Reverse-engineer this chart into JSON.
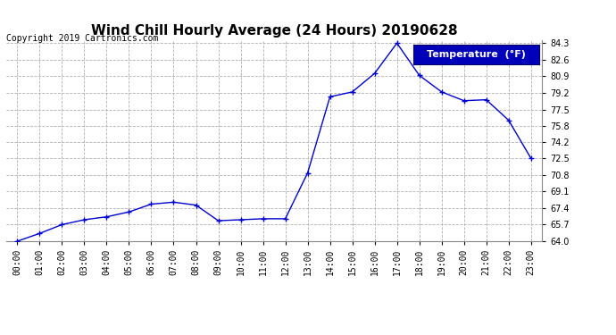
{
  "title": "Wind Chill Hourly Average (24 Hours) 20190628",
  "copyright": "Copyright 2019 Cartronics.com",
  "legend_label": "Temperature  (°F)",
  "hours": [
    0,
    1,
    2,
    3,
    4,
    5,
    6,
    7,
    8,
    9,
    10,
    11,
    12,
    13,
    14,
    15,
    16,
    17,
    18,
    19,
    20,
    21,
    22,
    23
  ],
  "values": [
    64.0,
    64.8,
    65.7,
    66.2,
    66.5,
    67.0,
    67.8,
    68.0,
    67.7,
    66.1,
    66.2,
    66.3,
    66.3,
    71.0,
    78.8,
    79.3,
    81.2,
    84.3,
    81.0,
    79.3,
    78.4,
    78.5,
    76.4,
    72.5
  ],
  "ylim_min": 64.0,
  "ylim_max": 84.6,
  "ytick_values": [
    64.0,
    65.7,
    67.4,
    69.1,
    70.8,
    72.5,
    74.2,
    75.8,
    77.5,
    79.2,
    80.9,
    82.6,
    84.3
  ],
  "ytick_labels": [
    "64.0",
    "65.7",
    "67.4",
    "69.1",
    "70.8",
    "72.5",
    "74.2",
    "75.8",
    "77.5",
    "79.2",
    "80.9",
    "82.6",
    "84.3"
  ],
  "line_color": "#0000cc",
  "marker": "+",
  "markersize": 4,
  "linewidth": 1.0,
  "background_color": "#ffffff",
  "grid_color": "#b0b0b0",
  "grid_linestyle": "--",
  "title_fontsize": 11,
  "tick_fontsize": 7,
  "copyright_fontsize": 7,
  "legend_bg_color": "#0000bb",
  "legend_text_color": "#ffffff",
  "legend_fontsize": 8
}
